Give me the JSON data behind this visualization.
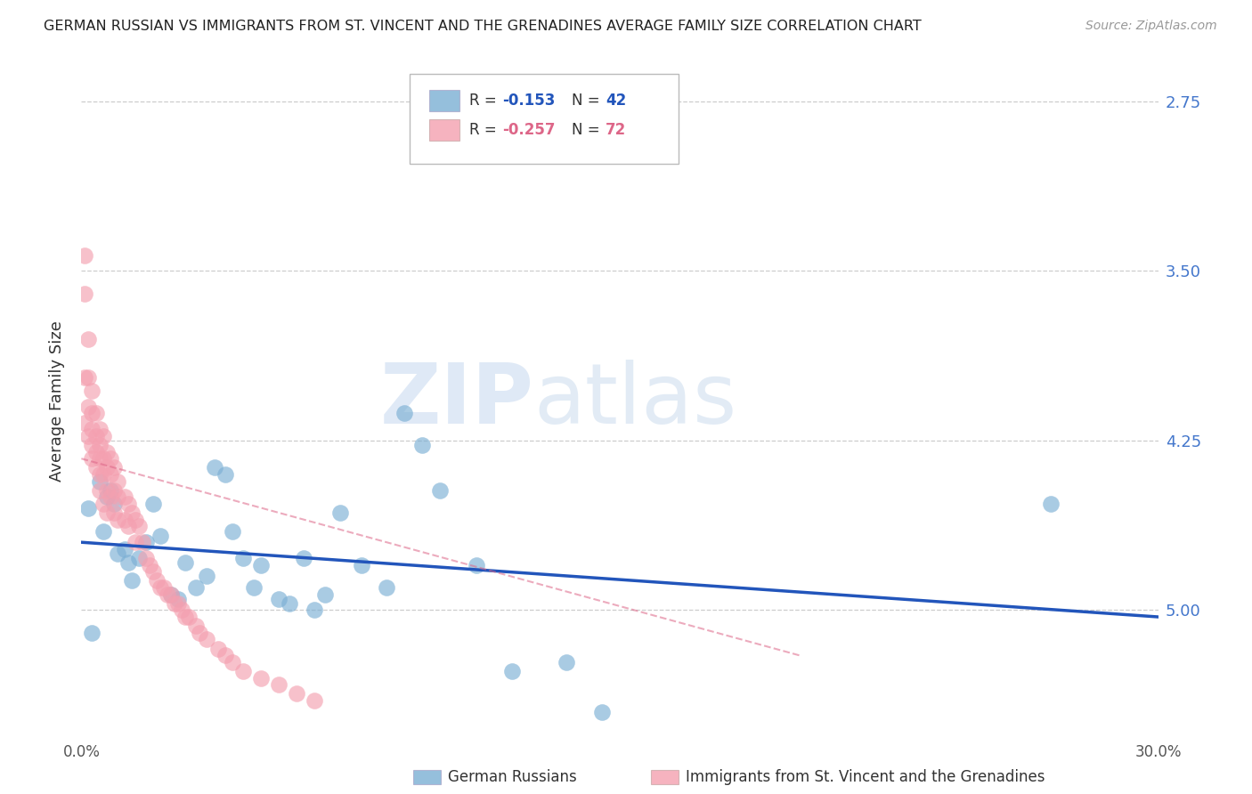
{
  "title": "GERMAN RUSSIAN VS IMMIGRANTS FROM ST. VINCENT AND THE GRENADINES AVERAGE FAMILY SIZE CORRELATION CHART",
  "source": "Source: ZipAtlas.com",
  "ylabel": "Average Family Size",
  "xlim": [
    0.0,
    0.3
  ],
  "ylim": [
    2.2,
    5.15
  ],
  "yticks": [
    2.75,
    3.5,
    4.25,
    5.0
  ],
  "xticks": [
    0.0,
    0.05,
    0.1,
    0.15,
    0.2,
    0.25,
    0.3
  ],
  "xtick_labels": [
    "0.0%",
    "",
    "",
    "",
    "",
    "",
    "30.0%"
  ],
  "right_ytick_labels": [
    "5.00",
    "4.25",
    "3.50",
    "2.75"
  ],
  "blue_color": "#7bafd4",
  "pink_color": "#f4a0b0",
  "blue_line_color": "#2255bb",
  "pink_line_color": "#dd6688",
  "watermark_zip": "ZIP",
  "watermark_atlas": "atlas",
  "legend_blue_r": "-0.153",
  "legend_blue_n": "42",
  "legend_pink_r": "-0.257",
  "legend_pink_n": "72",
  "legend_label_blue": "German Russians",
  "legend_label_pink": "Immigrants from St. Vincent and the Grenadines",
  "blue_scatter_x": [
    0.002,
    0.005,
    0.006,
    0.007,
    0.008,
    0.009,
    0.01,
    0.012,
    0.013,
    0.014,
    0.016,
    0.018,
    0.02,
    0.022,
    0.025,
    0.027,
    0.029,
    0.032,
    0.035,
    0.037,
    0.04,
    0.042,
    0.045,
    0.048,
    0.05,
    0.055,
    0.058,
    0.062,
    0.065,
    0.068,
    0.072,
    0.078,
    0.085,
    0.09,
    0.095,
    0.1,
    0.11,
    0.12,
    0.135,
    0.145,
    0.27,
    0.003
  ],
  "blue_scatter_y": [
    3.2,
    3.32,
    3.1,
    3.25,
    3.28,
    3.22,
    3.0,
    3.02,
    2.96,
    2.88,
    2.98,
    3.05,
    3.22,
    3.08,
    2.82,
    2.8,
    2.96,
    2.85,
    2.9,
    3.38,
    3.35,
    3.1,
    2.98,
    2.85,
    2.95,
    2.8,
    2.78,
    2.98,
    2.75,
    2.82,
    3.18,
    2.95,
    2.85,
    3.62,
    3.48,
    3.28,
    2.95,
    2.48,
    2.52,
    2.3,
    3.22,
    2.65
  ],
  "pink_scatter_x": [
    0.001,
    0.001,
    0.001,
    0.002,
    0.002,
    0.002,
    0.002,
    0.003,
    0.003,
    0.003,
    0.003,
    0.003,
    0.004,
    0.004,
    0.004,
    0.004,
    0.005,
    0.005,
    0.005,
    0.005,
    0.005,
    0.006,
    0.006,
    0.006,
    0.006,
    0.007,
    0.007,
    0.007,
    0.007,
    0.008,
    0.008,
    0.008,
    0.009,
    0.009,
    0.009,
    0.01,
    0.01,
    0.01,
    0.012,
    0.012,
    0.013,
    0.013,
    0.014,
    0.015,
    0.015,
    0.016,
    0.017,
    0.018,
    0.019,
    0.02,
    0.021,
    0.022,
    0.023,
    0.024,
    0.025,
    0.026,
    0.027,
    0.028,
    0.029,
    0.03,
    0.032,
    0.033,
    0.035,
    0.038,
    0.04,
    0.042,
    0.045,
    0.05,
    0.055,
    0.06,
    0.065,
    0.001
  ],
  "pink_scatter_y": [
    4.15,
    3.78,
    3.58,
    3.95,
    3.78,
    3.65,
    3.52,
    3.72,
    3.62,
    3.55,
    3.48,
    3.42,
    3.62,
    3.52,
    3.45,
    3.38,
    3.55,
    3.48,
    3.42,
    3.35,
    3.28,
    3.52,
    3.42,
    3.35,
    3.22,
    3.45,
    3.38,
    3.28,
    3.18,
    3.42,
    3.35,
    3.25,
    3.38,
    3.28,
    3.18,
    3.32,
    3.25,
    3.15,
    3.25,
    3.15,
    3.22,
    3.12,
    3.18,
    3.15,
    3.05,
    3.12,
    3.05,
    2.98,
    2.95,
    2.92,
    2.88,
    2.85,
    2.85,
    2.82,
    2.82,
    2.78,
    2.78,
    2.75,
    2.72,
    2.72,
    2.68,
    2.65,
    2.62,
    2.58,
    2.55,
    2.52,
    2.48,
    2.45,
    2.42,
    2.38,
    2.35,
    4.32
  ],
  "blue_trend_x": [
    0.0,
    0.3
  ],
  "blue_trend_y": [
    3.05,
    2.72
  ],
  "pink_trend_x": [
    0.0,
    0.2
  ],
  "pink_trend_y": [
    3.42,
    2.55
  ],
  "bg_color": "#ffffff",
  "grid_color": "#c8c8c8"
}
